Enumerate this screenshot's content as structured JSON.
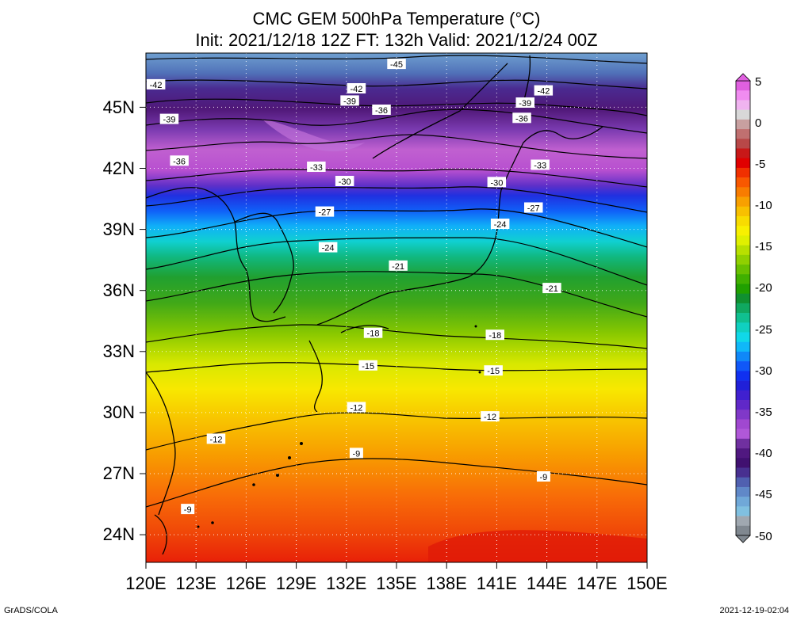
{
  "title": {
    "line1": "CMC GEM 500hPa Temperature (°C)",
    "line2": "Init: 2021/12/18 12Z  FT: 132h  Valid: 2021/12/24 00Z"
  },
  "footer": {
    "left": "GrADS/COLA",
    "right": "2021-12-19-02:04"
  },
  "x_ticks": [
    "120E",
    "123E",
    "126E",
    "129E",
    "132E",
    "135E",
    "138E",
    "141E",
    "144E",
    "147E",
    "150E"
  ],
  "y_ticks": [
    "45N",
    "42N",
    "39N",
    "36N",
    "33N",
    "30N",
    "27N",
    "24N"
  ],
  "colorbar": {
    "labels": [
      "5",
      "0",
      "-5",
      "-10",
      "-15",
      "-20",
      "-25",
      "-30",
      "-35",
      "-40",
      "-45",
      "-50"
    ],
    "colors": [
      "#e060e0",
      "#f08cf0",
      "#f0b4f0",
      "#d8d8d8",
      "#c8a0a0",
      "#c07070",
      "#b84848",
      "#c81818",
      "#e00000",
      "#f03000",
      "#f85800",
      "#f87c00",
      "#f8a000",
      "#f8c000",
      "#f8dc00",
      "#f8f000",
      "#e0f000",
      "#b8e000",
      "#90d000",
      "#68c000",
      "#40b000",
      "#20a000",
      "#109030",
      "#10a860",
      "#10c090",
      "#10d0c0",
      "#10d8e8",
      "#10b8f8",
      "#1088f8",
      "#1058f8",
      "#1030f0",
      "#2020d8",
      "#4020d0",
      "#6028c8",
      "#8038c8",
      "#a048d0",
      "#b058d8",
      "#7030a0",
      "#501880",
      "#401070",
      "#483090",
      "#5060b0",
      "#6088c8",
      "#70a8d8",
      "#80c0e0",
      "#a0a8b0",
      "#808890"
    ]
  },
  "contour_labels": [
    {
      "v": "-45",
      "lon": 135.0,
      "lat": 46.85
    },
    {
      "v": "-42",
      "lon": 120.6,
      "lat": 45.85
    },
    {
      "v": "-42",
      "lon": 132.6,
      "lat": 45.65
    },
    {
      "v": "-42",
      "lon": 143.8,
      "lat": 45.55
    },
    {
      "v": "-39",
      "lon": 121.4,
      "lat": 44.15
    },
    {
      "v": "-39",
      "lon": 132.2,
      "lat": 45.05
    },
    {
      "v": "-39",
      "lon": 142.7,
      "lat": 44.95
    },
    {
      "v": "-36",
      "lon": 134.1,
      "lat": 44.6
    },
    {
      "v": "-36",
      "lon": 142.5,
      "lat": 44.2
    },
    {
      "v": "-36",
      "lon": 122.0,
      "lat": 42.1
    },
    {
      "v": "-33",
      "lon": 130.2,
      "lat": 41.8
    },
    {
      "v": "-33",
      "lon": 143.6,
      "lat": 41.9
    },
    {
      "v": "-30",
      "lon": 131.9,
      "lat": 41.1
    },
    {
      "v": "-30",
      "lon": 141.0,
      "lat": 41.05
    },
    {
      "v": "-27",
      "lon": 130.7,
      "lat": 39.6
    },
    {
      "v": "-27",
      "lon": 143.2,
      "lat": 39.8
    },
    {
      "v": "-24",
      "lon": 130.9,
      "lat": 37.85
    },
    {
      "v": "-24",
      "lon": 141.2,
      "lat": 39.0
    },
    {
      "v": "-21",
      "lon": 135.1,
      "lat": 36.95
    },
    {
      "v": "-21",
      "lon": 144.3,
      "lat": 35.85
    },
    {
      "v": "-18",
      "lon": 133.6,
      "lat": 33.65
    },
    {
      "v": "-18",
      "lon": 140.9,
      "lat": 33.55
    },
    {
      "v": "-15",
      "lon": 133.3,
      "lat": 32.05
    },
    {
      "v": "-15",
      "lon": 140.8,
      "lat": 31.8
    },
    {
      "v": "-12",
      "lon": 132.6,
      "lat": 30.0
    },
    {
      "v": "-12",
      "lon": 140.6,
      "lat": 29.55
    },
    {
      "v": "-12",
      "lon": 124.2,
      "lat": 28.45
    },
    {
      "v": "-9",
      "lon": 132.6,
      "lat": 27.75
    },
    {
      "v": "-9",
      "lon": 143.8,
      "lat": 26.6
    },
    {
      "v": "-9",
      "lon": 122.5,
      "lat": 25.0
    }
  ]
}
